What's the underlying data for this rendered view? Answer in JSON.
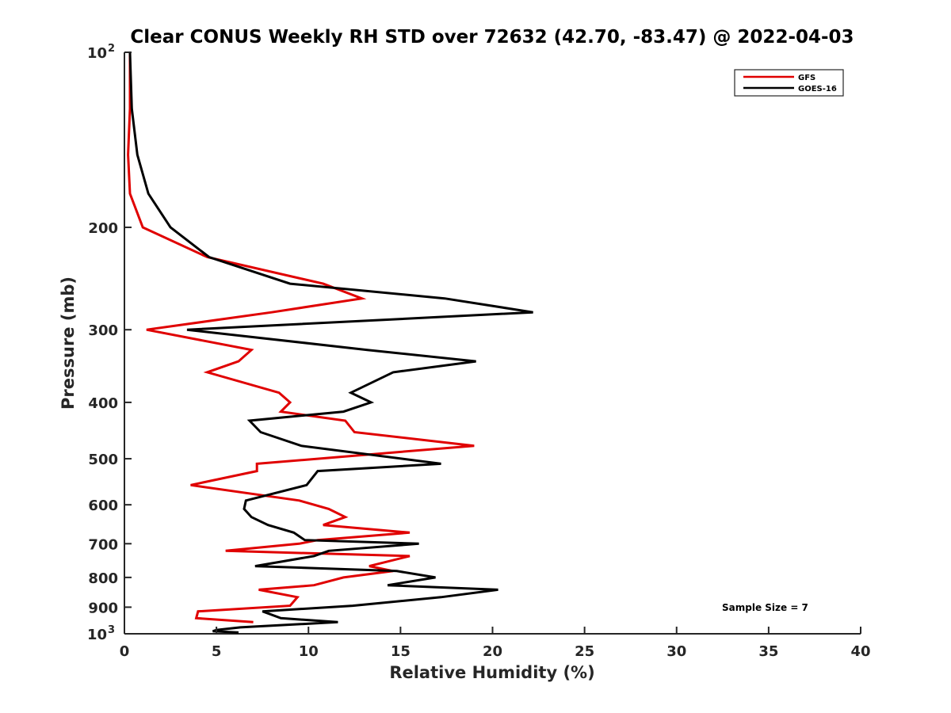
{
  "chart_data": {
    "type": "line",
    "title": "Clear CONUS Weekly RH STD over 72632 (42.70, -83.47) @ 2022-04-03",
    "xlabel": "Relative Humidity (%)",
    "ylabel": "Pressure (mb)",
    "xlim": [
      0,
      40
    ],
    "ylim": [
      100,
      1000
    ],
    "y_scale": "log",
    "y_reversed": true,
    "x_ticks": [
      "0",
      "5",
      "10",
      "15",
      "20",
      "25",
      "30",
      "35",
      "40"
    ],
    "y_ticks": [
      {
        "value": 100,
        "base": "10",
        "exp": "2"
      },
      {
        "value": 200,
        "label": "200"
      },
      {
        "value": 300,
        "label": "300"
      },
      {
        "value": 400,
        "label": "400"
      },
      {
        "value": 500,
        "label": "500"
      },
      {
        "value": 600,
        "label": "600"
      },
      {
        "value": 700,
        "label": "700"
      },
      {
        "value": 800,
        "label": "800"
      },
      {
        "value": 900,
        "label": "900"
      },
      {
        "value": 1000,
        "base": "10",
        "exp": "3"
      }
    ],
    "grid": false,
    "legend_position": "top-right",
    "annotation": "Sample Size = 7",
    "series": [
      {
        "name": "GFS",
        "color": "#e00000",
        "points": [
          [
            0.3,
            100
          ],
          [
            0.3,
            125
          ],
          [
            0.2,
            150
          ],
          [
            0.3,
            175
          ],
          [
            1.0,
            200
          ],
          [
            4.5,
            225
          ],
          [
            10.8,
            250
          ],
          [
            12.9,
            265
          ],
          [
            8.0,
            280
          ],
          [
            1.2,
            300
          ],
          [
            6.9,
            325
          ],
          [
            6.2,
            340
          ],
          [
            4.5,
            355
          ],
          [
            8.4,
            385
          ],
          [
            9.0,
            400
          ],
          [
            8.5,
            415
          ],
          [
            12.0,
            430
          ],
          [
            12.5,
            450
          ],
          [
            19.0,
            475
          ],
          [
            7.2,
            510
          ],
          [
            7.2,
            525
          ],
          [
            3.6,
            555
          ],
          [
            9.5,
            590
          ],
          [
            11.1,
            610
          ],
          [
            12.0,
            630
          ],
          [
            10.8,
            650
          ],
          [
            15.5,
            670
          ],
          [
            10.5,
            690
          ],
          [
            9.5,
            700
          ],
          [
            5.5,
            720
          ],
          [
            15.5,
            735
          ],
          [
            13.3,
            765
          ],
          [
            14.6,
            780
          ],
          [
            11.9,
            800
          ],
          [
            10.3,
            825
          ],
          [
            7.3,
            840
          ],
          [
            9.4,
            865
          ],
          [
            9.0,
            895
          ],
          [
            4.0,
            915
          ],
          [
            3.9,
            940
          ],
          [
            7.0,
            955
          ]
        ]
      },
      {
        "name": "GOES-16",
        "color": "#000000",
        "points": [
          [
            0.3,
            100
          ],
          [
            0.4,
            125
          ],
          [
            0.7,
            150
          ],
          [
            1.3,
            175
          ],
          [
            2.5,
            200
          ],
          [
            4.6,
            225
          ],
          [
            9.0,
            250
          ],
          [
            17.4,
            265
          ],
          [
            22.2,
            280
          ],
          [
            3.4,
            300
          ],
          [
            13.2,
            325
          ],
          [
            19.1,
            340
          ],
          [
            14.6,
            355
          ],
          [
            12.3,
            385
          ],
          [
            13.4,
            400
          ],
          [
            11.9,
            415
          ],
          [
            6.8,
            430
          ],
          [
            7.4,
            450
          ],
          [
            9.6,
            475
          ],
          [
            17.2,
            510
          ],
          [
            10.5,
            525
          ],
          [
            9.9,
            555
          ],
          [
            6.6,
            590
          ],
          [
            6.5,
            610
          ],
          [
            6.9,
            630
          ],
          [
            7.8,
            650
          ],
          [
            9.2,
            670
          ],
          [
            9.8,
            690
          ],
          [
            16.0,
            700
          ],
          [
            11.1,
            720
          ],
          [
            10.3,
            735
          ],
          [
            7.1,
            765
          ],
          [
            14.8,
            780
          ],
          [
            16.9,
            800
          ],
          [
            14.3,
            825
          ],
          [
            20.3,
            840
          ],
          [
            17.2,
            865
          ],
          [
            12.4,
            895
          ],
          [
            7.5,
            915
          ],
          [
            8.5,
            940
          ],
          [
            11.6,
            955
          ],
          [
            6.3,
            975
          ],
          [
            5.0,
            985
          ],
          [
            4.8,
            990
          ],
          [
            6.2,
            995
          ]
        ]
      }
    ]
  }
}
